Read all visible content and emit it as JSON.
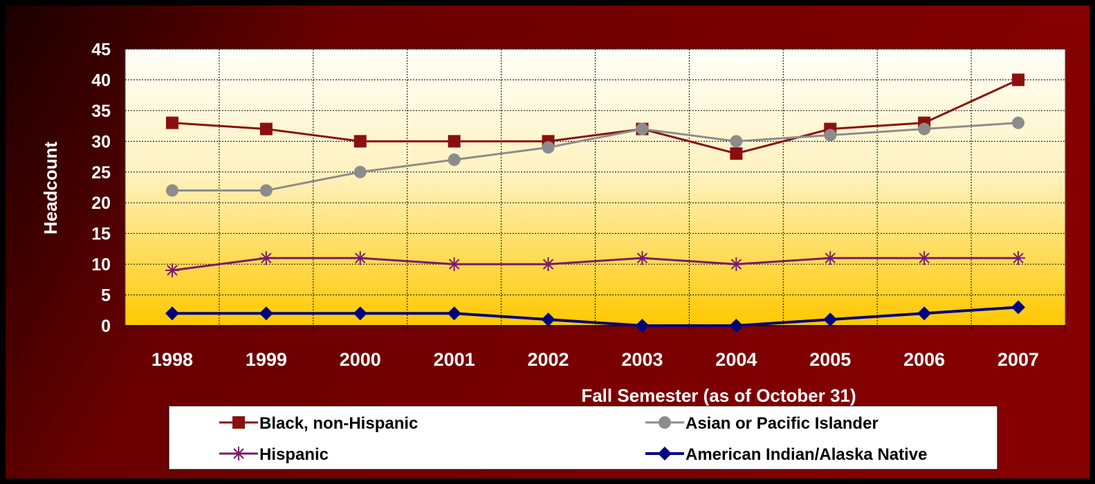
{
  "chart_data": {
    "type": "line",
    "title": "",
    "xlabel": "Fall Semester (as of October 31)",
    "ylabel": "Headcount",
    "ylim": [
      0,
      45
    ],
    "yticks": [
      0,
      5,
      10,
      15,
      20,
      25,
      30,
      35,
      40,
      45
    ],
    "grid": true,
    "legend_position": "bottom",
    "categories": [
      "1998",
      "1999",
      "2000",
      "2001",
      "2002",
      "2003",
      "2004",
      "2005",
      "2006",
      "2007"
    ],
    "series": [
      {
        "name": "Black, non-Hispanic",
        "color": "#8b0f0f",
        "marker": "square",
        "values": [
          33,
          32,
          30,
          30,
          30,
          32,
          28,
          32,
          33,
          40
        ]
      },
      {
        "name": "Asian or Pacific Islander",
        "color": "#8c8c8c",
        "marker": "circle",
        "values": [
          22,
          22,
          25,
          27,
          29,
          32,
          30,
          31,
          32,
          33
        ]
      },
      {
        "name": "Hispanic",
        "color": "#7a1a6e",
        "marker": "asterisk",
        "values": [
          9,
          11,
          11,
          10,
          10,
          11,
          10,
          11,
          11,
          11
        ]
      },
      {
        "name": "American Indian/Alaska Native",
        "color": "#000080",
        "marker": "diamond",
        "values": [
          2,
          2,
          2,
          2,
          1,
          0,
          0,
          1,
          2,
          3
        ]
      }
    ]
  },
  "colors": {
    "background_dark": "#2a0000",
    "background_red": "#7a0000",
    "plot_top": "#fffff0",
    "plot_bottom": "#ffc800"
  }
}
